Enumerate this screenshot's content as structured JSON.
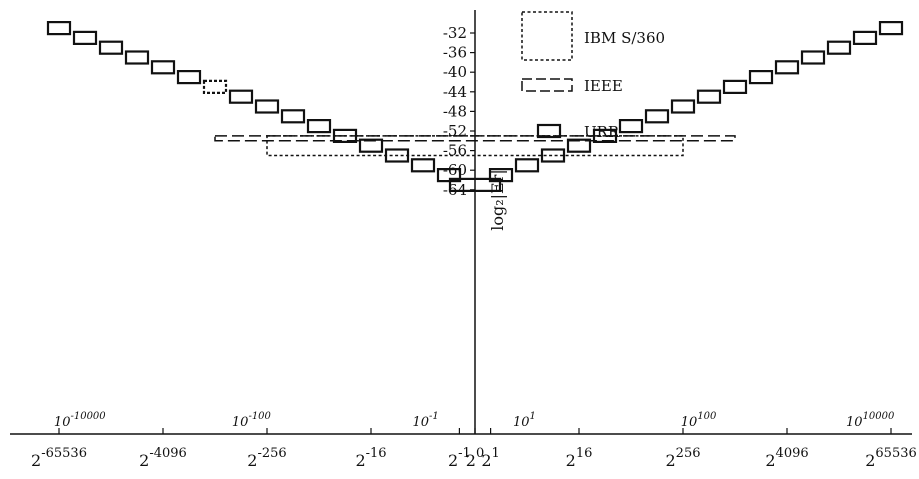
{
  "chart_data": {
    "type": "scatter",
    "title": "",
    "ylabel": "log₂|Er|",
    "y_axis": {
      "ylim": [
        -64,
        -30
      ],
      "ticks": [
        -32,
        -36,
        -40,
        -44,
        -48,
        -52,
        -56,
        -60,
        -64
      ],
      "tick_labels": [
        "-32",
        "-36",
        "-40",
        "-44",
        "-48",
        "-52",
        "-56",
        "-60",
        "-64"
      ]
    },
    "x_axis": {
      "scale": "log2 of log2 (exponent of 2 doubles per major tick)",
      "ticks": [
        {
          "label": "2",
          "exp": "-65536",
          "x": -16
        },
        {
          "label": "2",
          "exp": "-4096",
          "x": -12
        },
        {
          "label": "2",
          "exp": "-256",
          "x": -8
        },
        {
          "label": "2",
          "exp": "-16",
          "x": -4
        },
        {
          "label": "2",
          "exp": "-1",
          "x": -0.6
        },
        {
          "label": "2",
          "exp": "0",
          "x": 0
        },
        {
          "label": "2",
          "exp": "1",
          "x": 0.6
        },
        {
          "label": "2",
          "exp": "16",
          "x": 4
        },
        {
          "label": "2",
          "exp": "256",
          "x": 8
        },
        {
          "label": "2",
          "exp": "4096",
          "x": 12
        },
        {
          "label": "2",
          "exp": "65536",
          "x": 16
        }
      ],
      "decimal_ticks": [
        {
          "label": "10",
          "exp": "-10000",
          "x": -15.2
        },
        {
          "label": "10",
          "exp": "-100",
          "x": -8.6
        },
        {
          "label": "10",
          "exp": "-1",
          "x": -1.9
        },
        {
          "label": "10",
          "exp": "1",
          "x": 1.9
        },
        {
          "label": "10",
          "exp": "100",
          "x": 8.6
        },
        {
          "label": "10",
          "exp": "10000",
          "x": 15.2
        }
      ]
    },
    "legend": {
      "placement": "top-center",
      "entries": [
        {
          "label": "IBM S/360",
          "style": "dotted"
        },
        {
          "label": "IEEE",
          "style": "dashed"
        },
        {
          "label": "URR",
          "style": "solid"
        }
      ]
    },
    "series": [
      {
        "name": "IBM S/360",
        "style": "dotted",
        "regions": [
          {
            "x0": -8,
            "x1": 8,
            "y0": -57,
            "y1": -53
          }
        ]
      },
      {
        "name": "IEEE",
        "style": "dashed",
        "regions": [
          {
            "x0": -10,
            "x1": 10,
            "y0": -54,
            "y1": -53
          }
        ]
      },
      {
        "name": "URR",
        "style": "solid",
        "boxes": [
          {
            "x": -16,
            "y": -31
          },
          {
            "x": -15,
            "y": -33
          },
          {
            "x": -14,
            "y": -35
          },
          {
            "x": -13,
            "y": -37
          },
          {
            "x": -12,
            "y": -39
          },
          {
            "x": -11,
            "y": -41
          },
          {
            "x": -10,
            "y": -43,
            "style": "dotted"
          },
          {
            "x": -9,
            "y": -45
          },
          {
            "x": -8,
            "y": -47
          },
          {
            "x": -7,
            "y": -49
          },
          {
            "x": -6,
            "y": -51
          },
          {
            "x": -5,
            "y": -53
          },
          {
            "x": -4,
            "y": -55
          },
          {
            "x": -3,
            "y": -57
          },
          {
            "x": -2,
            "y": -59
          },
          {
            "x": -1,
            "y": -61
          },
          {
            "x": 0,
            "y": -63,
            "wide": true
          },
          {
            "x": 1,
            "y": -61
          },
          {
            "x": 2,
            "y": -59
          },
          {
            "x": 3,
            "y": -57
          },
          {
            "x": 4,
            "y": -55
          },
          {
            "x": 5,
            "y": -53
          },
          {
            "x": 6,
            "y": -51
          },
          {
            "x": 7,
            "y": -49
          },
          {
            "x": 8,
            "y": -47
          },
          {
            "x": 9,
            "y": -45
          },
          {
            "x": 10,
            "y": -43
          },
          {
            "x": 11,
            "y": -41
          },
          {
            "x": 12,
            "y": -39
          },
          {
            "x": 13,
            "y": -37
          },
          {
            "x": 14,
            "y": -35
          },
          {
            "x": 15,
            "y": -33
          },
          {
            "x": 16,
            "y": -31
          }
        ]
      }
    ],
    "grid": false
  },
  "colors": {
    "ink": "#111111",
    "background": "#ffffff"
  }
}
